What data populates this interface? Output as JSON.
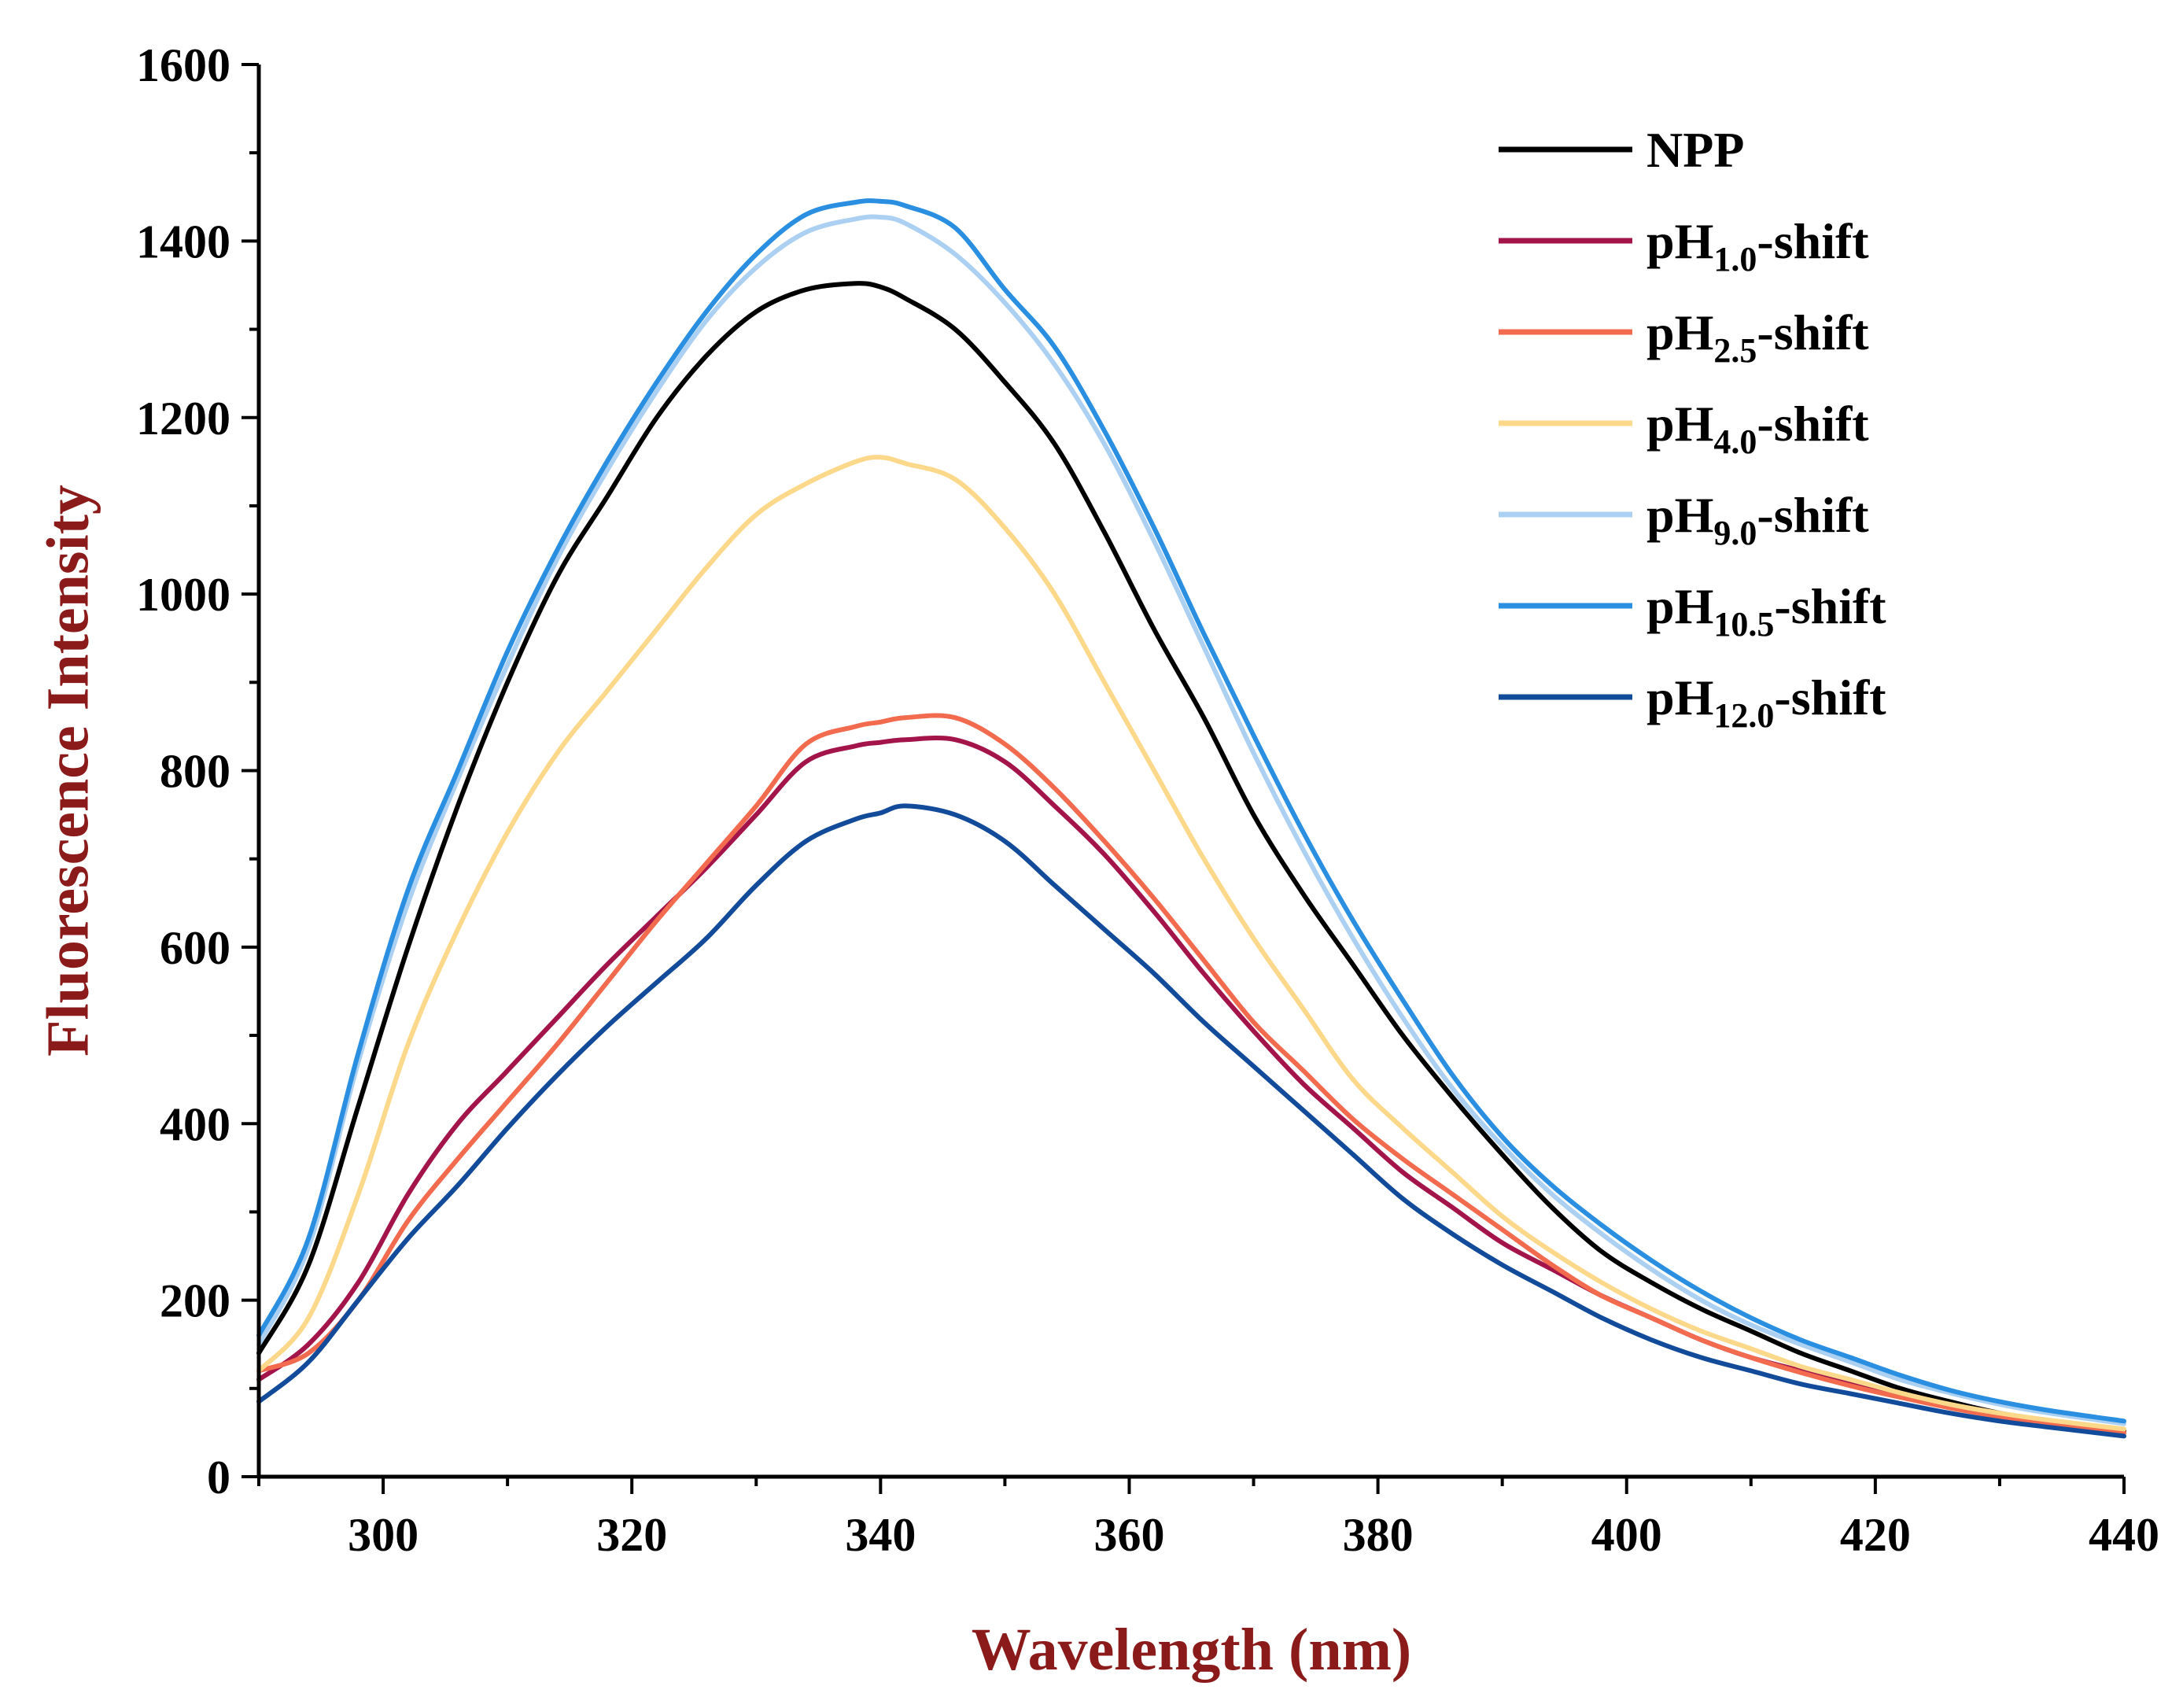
{
  "chart_data": {
    "type": "line",
    "title": "",
    "xlabel": "Wavelength (nm)",
    "ylabel": "Fluorescence Intensity",
    "axis_title_color": "#8B1A1A",
    "xlim": [
      290,
      440
    ],
    "ylim": [
      0,
      1600
    ],
    "xticks": [
      300,
      320,
      340,
      360,
      380,
      400,
      420,
      440
    ],
    "yticks": [
      0,
      200,
      400,
      600,
      800,
      1000,
      1200,
      1400,
      1600
    ],
    "grid": false,
    "legend_position": "top-right",
    "x": [
      290,
      294,
      298,
      302,
      306,
      310,
      314,
      318,
      322,
      326,
      330,
      334,
      338,
      340,
      342,
      346,
      350,
      354,
      358,
      362,
      366,
      370,
      374,
      378,
      382,
      386,
      390,
      394,
      398,
      402,
      406,
      410,
      414,
      418,
      422,
      426,
      430,
      434,
      440
    ],
    "series": [
      {
        "name": "NPP",
        "label_main": "NPP",
        "label_sub": "",
        "label_suffix": "",
        "color": "#000000",
        "values": [
          140,
          240,
          420,
          600,
          760,
          900,
          1020,
          1110,
          1200,
          1270,
          1320,
          1345,
          1352,
          1348,
          1335,
          1300,
          1240,
          1170,
          1070,
          960,
          860,
          750,
          660,
          580,
          500,
          430,
          365,
          305,
          255,
          220,
          190,
          165,
          140,
          120,
          100,
          85,
          72,
          63,
          52
        ]
      },
      {
        "name": "pH1.0-shift",
        "label_main": "pH",
        "label_sub": "1.0",
        "label_suffix": "-shift",
        "color": "#A3154A",
        "values": [
          110,
          150,
          220,
          320,
          400,
          460,
          520,
          580,
          635,
          690,
          750,
          810,
          828,
          832,
          835,
          835,
          810,
          760,
          705,
          640,
          570,
          505,
          445,
          395,
          345,
          305,
          265,
          235,
          205,
          180,
          155,
          135,
          120,
          105,
          92,
          80,
          70,
          62,
          50
        ]
      },
      {
        "name": "pH2.5-shift",
        "label_main": "pH",
        "label_sub": "2.5",
        "label_suffix": "-shift",
        "color": "#F26B4F",
        "values": [
          120,
          140,
          200,
          290,
          360,
          425,
          490,
          560,
          630,
          695,
          760,
          830,
          850,
          855,
          860,
          860,
          830,
          780,
          720,
          655,
          585,
          515,
          460,
          405,
          360,
          320,
          280,
          240,
          205,
          180,
          155,
          135,
          118,
          103,
          90,
          78,
          68,
          60,
          50
        ]
      },
      {
        "name": "pH4.0-shift",
        "label_main": "pH",
        "label_sub": "4.0",
        "label_suffix": "-shift",
        "color": "#FCD88A",
        "values": [
          120,
          180,
          320,
          490,
          620,
          730,
          820,
          890,
          960,
          1030,
          1090,
          1125,
          1150,
          1155,
          1148,
          1130,
          1075,
          1000,
          900,
          800,
          700,
          610,
          530,
          450,
          395,
          345,
          295,
          255,
          220,
          190,
          165,
          145,
          125,
          110,
          95,
          82,
          72,
          64,
          54
        ]
      },
      {
        "name": "pH9.0-shift",
        "label_main": "pH",
        "label_sub": "9.0",
        "label_suffix": "-shift",
        "color": "#ABD0F1",
        "values": [
          150,
          260,
          470,
          650,
          790,
          920,
          1040,
          1140,
          1230,
          1310,
          1370,
          1410,
          1425,
          1427,
          1420,
          1385,
          1330,
          1260,
          1170,
          1060,
          940,
          820,
          710,
          610,
          520,
          440,
          375,
          320,
          275,
          235,
          200,
          172,
          150,
          130,
          110,
          95,
          82,
          72,
          60
        ]
      },
      {
        "name": "pH10.5-shift",
        "label_main": "pH",
        "label_sub": "10.5",
        "label_suffix": "-shift",
        "color": "#2A8FE0",
        "values": [
          160,
          270,
          480,
          665,
          800,
          935,
          1050,
          1150,
          1240,
          1320,
          1385,
          1430,
          1444,
          1445,
          1440,
          1415,
          1345,
          1280,
          1185,
          1075,
          955,
          840,
          730,
          630,
          540,
          455,
          385,
          330,
          285,
          245,
          210,
          180,
          155,
          135,
          115,
          98,
          85,
          75,
          63
        ]
      },
      {
        "name": "pH12.0-shift",
        "label_main": "pH",
        "label_sub": "12.0",
        "label_suffix": "-shift",
        "color": "#124B99",
        "values": [
          85,
          130,
          200,
          270,
          330,
          395,
          455,
          510,
          560,
          610,
          670,
          720,
          745,
          752,
          760,
          750,
          720,
          670,
          620,
          570,
          515,
          465,
          415,
          365,
          315,
          275,
          240,
          210,
          180,
          155,
          135,
          120,
          105,
          94,
          83,
          72,
          63,
          56,
          46
        ]
      }
    ]
  }
}
